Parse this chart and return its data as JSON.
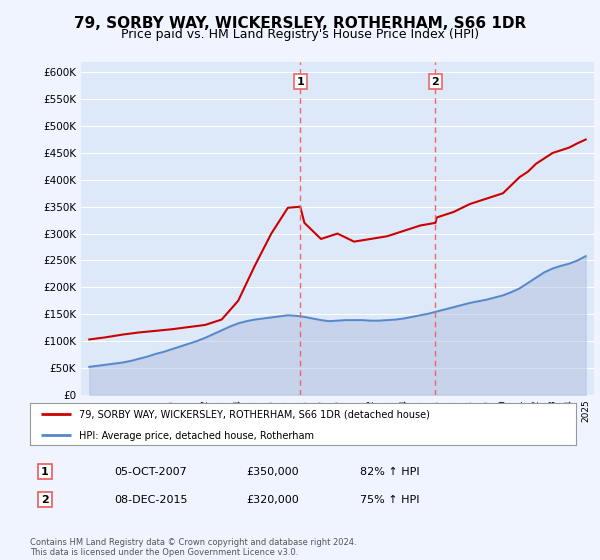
{
  "title": "79, SORBY WAY, WICKERSLEY, ROTHERHAM, S66 1DR",
  "subtitle": "Price paid vs. HM Land Registry's House Price Index (HPI)",
  "title_fontsize": 11,
  "subtitle_fontsize": 9,
  "ylim": [
    0,
    620000
  ],
  "yticks": [
    0,
    50000,
    100000,
    150000,
    200000,
    250000,
    300000,
    350000,
    400000,
    450000,
    500000,
    550000,
    600000
  ],
  "ytick_labels": [
    "£0",
    "£50K",
    "£100K",
    "£150K",
    "£200K",
    "£250K",
    "£300K",
    "£350K",
    "£400K",
    "£450K",
    "£500K",
    "£550K",
    "£600K"
  ],
  "xlim": [
    1994.5,
    2025.5
  ],
  "background_color": "#f0f4ff",
  "plot_bg_color": "#dde8f8",
  "grid_color": "#ffffff",
  "vline1_x": 2007.75,
  "vline2_x": 2015.92,
  "vline_color": "#ee6666",
  "label1": "1",
  "label2": "2",
  "annotation1_date": "05-OCT-2007",
  "annotation1_price": "£350,000",
  "annotation1_hpi": "82% ↑ HPI",
  "annotation2_date": "08-DEC-2015",
  "annotation2_price": "£320,000",
  "annotation2_hpi": "75% ↑ HPI",
  "legend_line1": "79, SORBY WAY, WICKERSLEY, ROTHERHAM, S66 1DR (detached house)",
  "legend_line2": "HPI: Average price, detached house, Rotherham",
  "line1_color": "#cc0000",
  "line2_color": "#5588cc",
  "fill2_color": "#aabbdd",
  "footer": "Contains HM Land Registry data © Crown copyright and database right 2024.\nThis data is licensed under the Open Government Licence v3.0.",
  "hpi_years": [
    1995,
    1995.5,
    1996,
    1996.5,
    1997,
    1997.5,
    1998,
    1998.5,
    1999,
    1999.5,
    2000,
    2000.5,
    2001,
    2001.5,
    2002,
    2002.5,
    2003,
    2003.5,
    2004,
    2004.5,
    2005,
    2005.5,
    2006,
    2006.5,
    2007,
    2007.5,
    2008,
    2008.5,
    2009,
    2009.5,
    2010,
    2010.5,
    2011,
    2011.5,
    2012,
    2012.5,
    2013,
    2013.5,
    2014,
    2014.5,
    2015,
    2015.5,
    2016,
    2016.5,
    2017,
    2017.5,
    2018,
    2018.5,
    2019,
    2019.5,
    2020,
    2020.5,
    2021,
    2021.5,
    2022,
    2022.5,
    2023,
    2023.5,
    2024,
    2024.5,
    2025
  ],
  "hpi_values": [
    52000,
    54000,
    56000,
    58000,
    60000,
    63000,
    67000,
    71000,
    76000,
    80000,
    85000,
    90000,
    95000,
    100000,
    106000,
    113000,
    120000,
    127000,
    133000,
    137000,
    140000,
    142000,
    144000,
    146000,
    148000,
    147000,
    145000,
    142000,
    139000,
    137000,
    138000,
    139000,
    139000,
    139000,
    138000,
    138000,
    139000,
    140000,
    142000,
    145000,
    148000,
    151000,
    155000,
    159000,
    163000,
    167000,
    171000,
    174000,
    177000,
    181000,
    185000,
    191000,
    198000,
    208000,
    218000,
    228000,
    235000,
    240000,
    244000,
    250000,
    258000
  ],
  "price_years": [
    1995,
    1996,
    1997,
    1998,
    1999,
    2000,
    2001,
    2002,
    2003,
    2004,
    2005,
    2006,
    2007,
    2007.75,
    2008,
    2009,
    2010,
    2011,
    2012,
    2013,
    2014,
    2015,
    2015.92,
    2016,
    2017,
    2018,
    2019,
    2020,
    2020.5,
    2021,
    2021.5,
    2022,
    2022.5,
    2023,
    2023.5,
    2024,
    2024.5,
    2025
  ],
  "price_values": [
    103000,
    107000,
    112000,
    116000,
    119000,
    122000,
    126000,
    130000,
    140000,
    175000,
    240000,
    300000,
    348000,
    350000,
    320000,
    290000,
    300000,
    285000,
    290000,
    295000,
    305000,
    315000,
    320000,
    330000,
    340000,
    355000,
    365000,
    375000,
    390000,
    405000,
    415000,
    430000,
    440000,
    450000,
    455000,
    460000,
    468000,
    475000
  ]
}
